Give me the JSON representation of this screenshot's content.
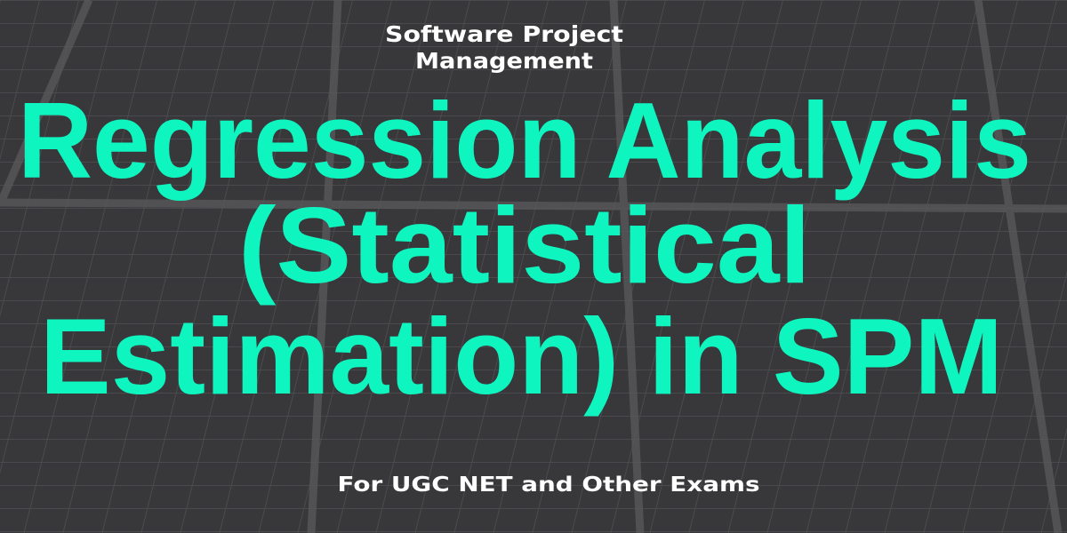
{
  "colors": {
    "background": "#38383a",
    "grid": "#4b4b4e",
    "title": "#0ff5c0",
    "text": "#ffffff"
  },
  "background_image": "solar-panels",
  "subtitle": {
    "line1": "Software Project",
    "line2": "Management"
  },
  "title": {
    "line1": "Regression Analysis",
    "line2": "(Statistical",
    "line3": "Estimation) in SPM"
  },
  "footer": "For UGC NET and Other Exams"
}
